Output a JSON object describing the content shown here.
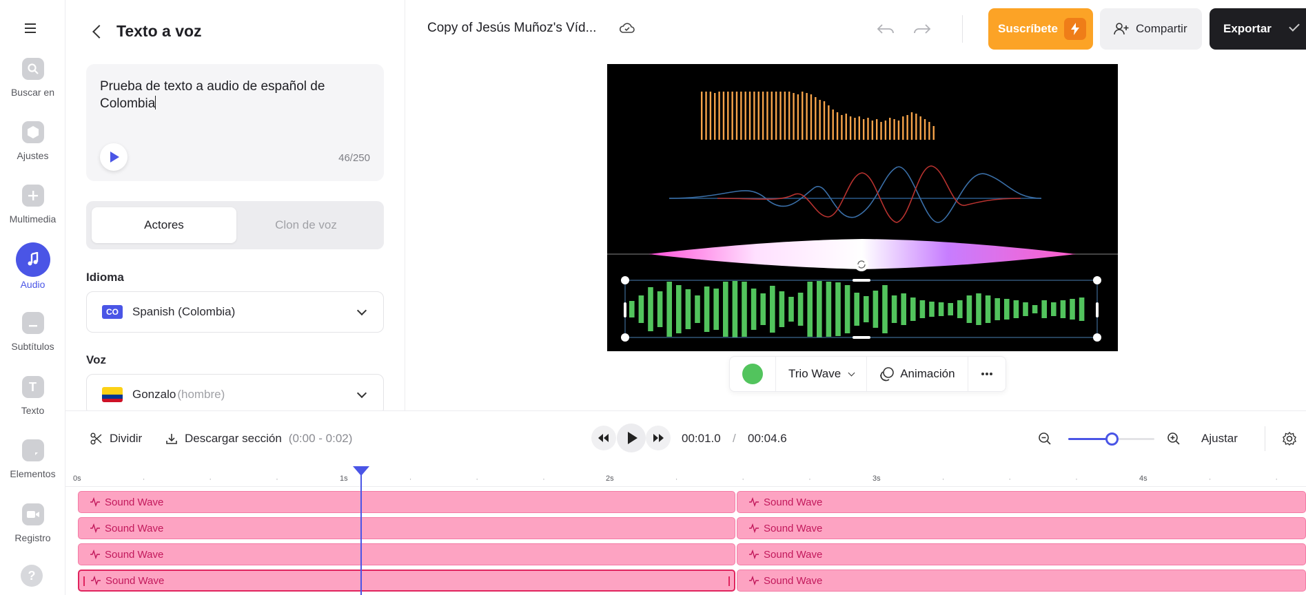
{
  "rail": {
    "items": [
      {
        "label": "Buscar en",
        "icon": "search-icon"
      },
      {
        "label": "Ajustes",
        "icon": "settings-icon"
      },
      {
        "label": "Multimedia",
        "icon": "plus-icon"
      },
      {
        "label": "Audio",
        "icon": "music-note-icon",
        "active": true
      },
      {
        "label": "Subtítulos",
        "icon": "subtitles-icon"
      },
      {
        "label": "Texto",
        "icon": "text-icon"
      },
      {
        "label": "Elementos",
        "icon": "elements-icon"
      },
      {
        "label": "Registro",
        "icon": "record-icon"
      }
    ]
  },
  "panel": {
    "title": "Texto a voz",
    "text_value": "Prueba de texto a audio de español de Colombia",
    "char_count": "46/250",
    "tabs": [
      "Actores",
      "Clon de voz"
    ],
    "language_label": "Idioma",
    "language_badge": "CO",
    "language_value": "Spanish (Colombia)",
    "voice_label": "Voz",
    "voice_name": "Gonzalo",
    "voice_gender": "(hombre)"
  },
  "topbar": {
    "project_title": "Copy of Jesús Muñoz's Víd...",
    "subscribe_label": "Suscríbete",
    "share_label": "Compartir",
    "export_label": "Exportar"
  },
  "canvas_toolbar": {
    "color": "#52c45d",
    "style_label": "Trio Wave",
    "animation_label": "Animación"
  },
  "timeline": {
    "split_label": "Dividir",
    "download_label": "Descargar sección",
    "download_range": "(0:00 - 0:02)",
    "current_time": "00:01.0",
    "separator": "/",
    "total_time": "00:04.6",
    "fit_label": "Ajustar",
    "zoom_level": 0.5,
    "ruler_labels": [
      "0s",
      "1s",
      "2s",
      "3s",
      "4s"
    ],
    "tracks": [
      {
        "left": "Sound Wave",
        "right": "Sound Wave"
      },
      {
        "left": "Sound Wave",
        "right": "Sound Wave"
      },
      {
        "left": "Sound Wave",
        "right": "Sound Wave"
      },
      {
        "left": "Sound Wave",
        "right": "Sound Wave",
        "selected": true
      }
    ]
  },
  "colors": {
    "accent": "#4a55e6",
    "orange_wave": "#f6a34a",
    "green_wave": "#52c45d",
    "track": "#fda3c2"
  }
}
